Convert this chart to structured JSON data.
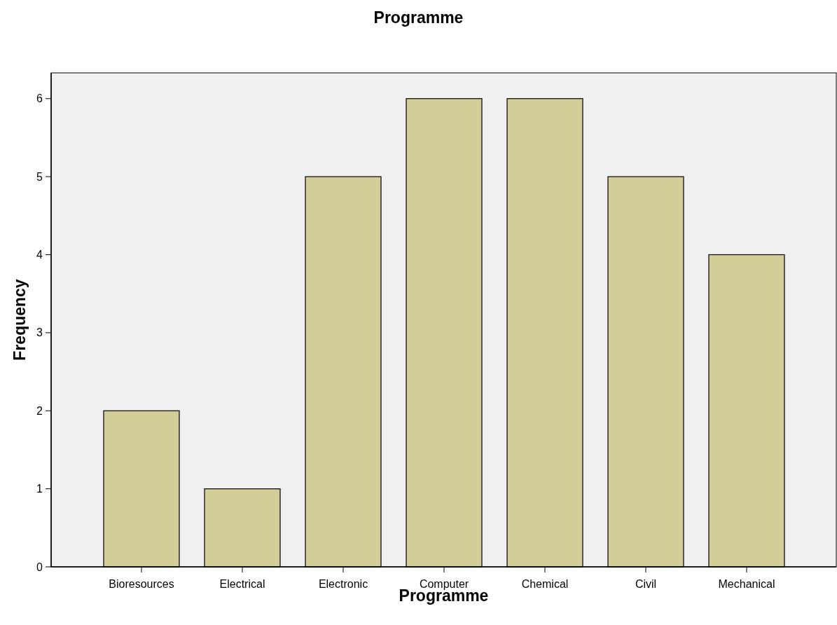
{
  "chart_data": {
    "type": "bar",
    "title": "Programme",
    "xlabel": "Programme",
    "ylabel": "Frequency",
    "categories": [
      "Bioresources",
      "Electrical",
      "Electronic",
      "Computer",
      "Chemical",
      "Civil",
      "Mechanical"
    ],
    "values": [
      2,
      1,
      5,
      6,
      6,
      5,
      4
    ],
    "color": "#d3ce97",
    "ylim": [
      0,
      6.33
    ],
    "yticks": [
      0,
      1,
      2,
      3,
      4,
      5,
      6
    ],
    "grid": false
  }
}
